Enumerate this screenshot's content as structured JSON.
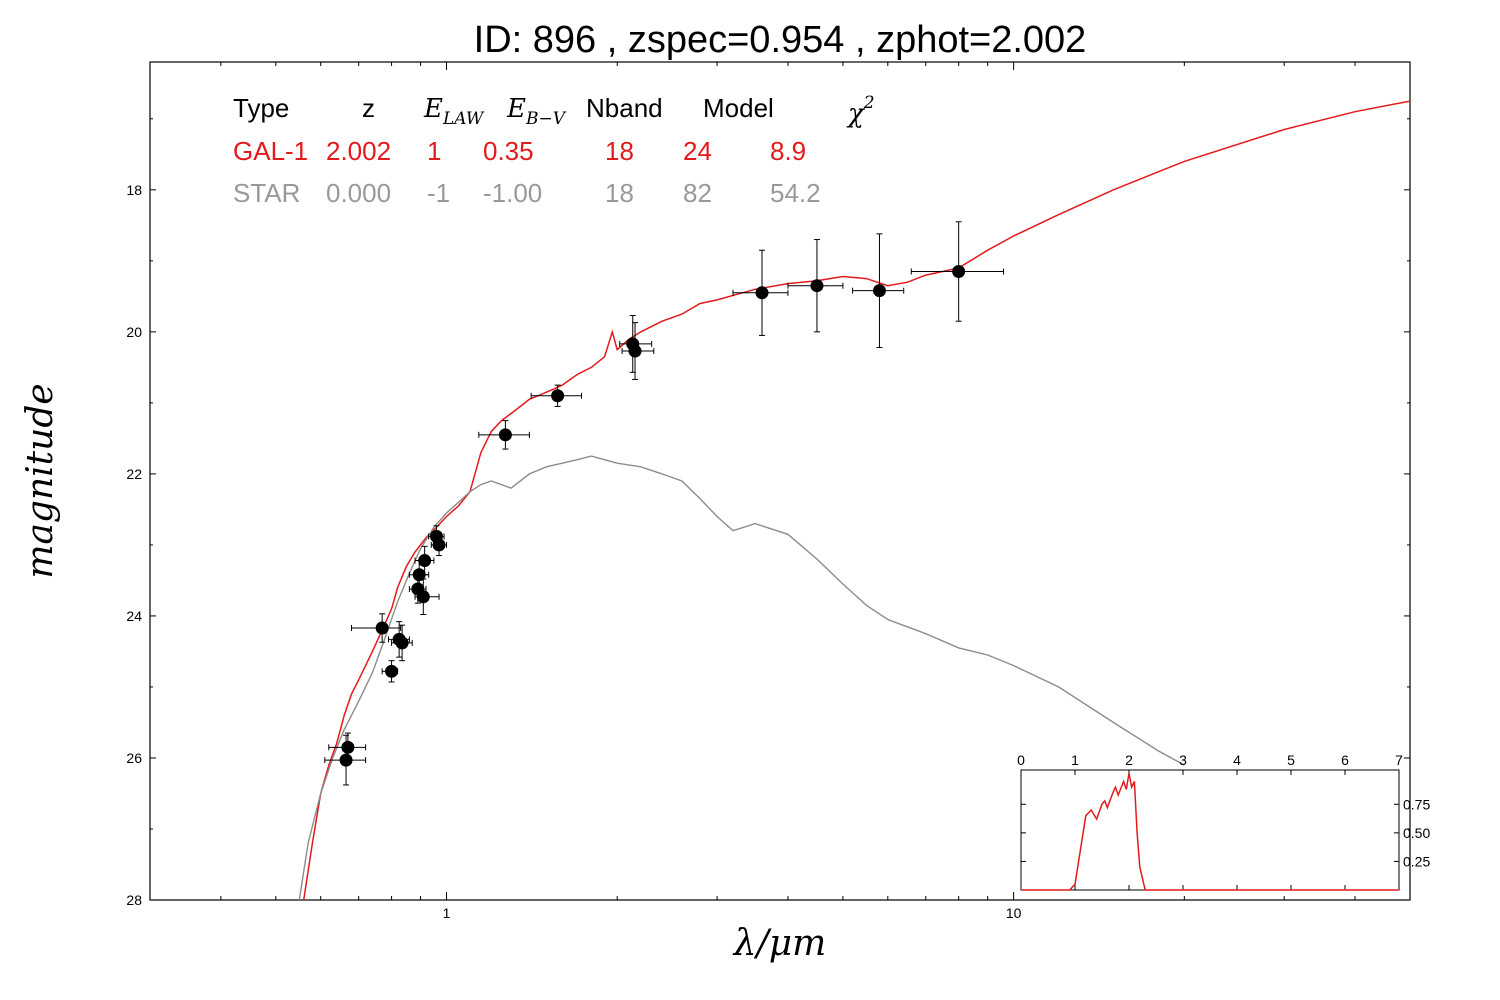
{
  "chart_data": {
    "type": "line",
    "title": "ID:  896   , zspec=0.954 , zphot=2.002",
    "xlabel": "λ/μm",
    "ylabel": "magnitude",
    "xscale": "log",
    "xlim": [
      0.3,
      50
    ],
    "ylim": [
      28,
      16.2
    ],
    "y_inverted": true,
    "xticks": [
      {
        "value": 1,
        "label": "1"
      },
      {
        "value": 10,
        "label": "10"
      }
    ],
    "yticks": [
      18,
      20,
      22,
      24,
      26,
      28
    ],
    "legend_table": {
      "headers": [
        "Type",
        "z",
        "E_LAW",
        "E_B-V",
        "Nband",
        "Model",
        "χ²"
      ],
      "rows": [
        {
          "type": "GAL-1",
          "z": "2.002",
          "elaw": "1",
          "ebv": "0.35",
          "nband": "18",
          "model": "24",
          "chi2": "8.9",
          "color": "#e31a1c"
        },
        {
          "type": "STAR",
          "z": "0.000",
          "elaw": "-1",
          "ebv": "-1.00",
          "nband": "18",
          "model": "82",
          "chi2": "54.2",
          "color": "#999999"
        }
      ]
    },
    "series": [
      {
        "kind": "galaxy-model",
        "color": "#e31a1c",
        "x": [
          0.56,
          0.58,
          0.6,
          0.62,
          0.64,
          0.66,
          0.68,
          0.7,
          0.72,
          0.74,
          0.76,
          0.78,
          0.8,
          0.82,
          0.85,
          0.88,
          0.92,
          0.96,
          1.0,
          1.05,
          1.1,
          1.15,
          1.2,
          1.25,
          1.3,
          1.35,
          1.4,
          1.45,
          1.5,
          1.55,
          1.6,
          1.7,
          1.8,
          1.9,
          1.96,
          2.0,
          2.1,
          2.2,
          2.4,
          2.6,
          2.8,
          3.0,
          3.5,
          4.0,
          4.5,
          5.0,
          5.5,
          6.0,
          6.5,
          7.0,
          7.5,
          8.0,
          9.0,
          10.0,
          12.0,
          15.0,
          20.0,
          30.0,
          40.0,
          50.0
        ],
        "y": [
          28.0,
          27.2,
          26.5,
          26.1,
          25.8,
          25.4,
          25.1,
          24.9,
          24.7,
          24.5,
          24.3,
          24.1,
          23.9,
          23.6,
          23.3,
          23.1,
          22.9,
          22.75,
          22.6,
          22.45,
          22.25,
          21.7,
          21.4,
          21.25,
          21.15,
          21.05,
          20.95,
          20.9,
          20.85,
          20.8,
          20.75,
          20.6,
          20.5,
          20.35,
          20.0,
          20.25,
          20.1,
          20.0,
          19.85,
          19.75,
          19.6,
          19.55,
          19.4,
          19.32,
          19.28,
          19.22,
          19.25,
          19.35,
          19.3,
          19.2,
          19.15,
          19.1,
          18.85,
          18.65,
          18.35,
          18.0,
          17.6,
          17.15,
          16.9,
          16.75
        ]
      },
      {
        "kind": "star-model",
        "color": "#8c8c8c",
        "x": [
          0.55,
          0.57,
          0.6,
          0.63,
          0.66,
          0.7,
          0.74,
          0.78,
          0.82,
          0.86,
          0.9,
          0.95,
          1.0,
          1.05,
          1.1,
          1.15,
          1.2,
          1.3,
          1.4,
          1.5,
          1.6,
          1.7,
          1.8,
          1.9,
          2.0,
          2.2,
          2.4,
          2.6,
          2.8,
          3.0,
          3.2,
          3.5,
          4.0,
          4.5,
          5.0,
          5.5,
          6.0,
          7.0,
          8.0,
          9.0,
          10.0,
          12.0,
          15.0,
          18.0,
          20.0
        ],
        "y": [
          28.0,
          27.2,
          26.5,
          26.0,
          25.6,
          25.2,
          24.8,
          24.3,
          23.8,
          23.4,
          23.05,
          22.75,
          22.55,
          22.4,
          22.25,
          22.15,
          22.1,
          22.2,
          22.0,
          21.9,
          21.85,
          21.8,
          21.75,
          21.8,
          21.85,
          21.9,
          22.0,
          22.1,
          22.35,
          22.6,
          22.8,
          22.7,
          22.85,
          23.2,
          23.55,
          23.85,
          24.05,
          24.25,
          24.45,
          24.55,
          24.7,
          25.0,
          25.5,
          25.9,
          26.1
        ]
      }
    ],
    "observations": [
      {
        "x": 0.67,
        "y": 25.85,
        "xerr": [
          0.62,
          0.72
        ],
        "yerr": 0.2
      },
      {
        "x": 0.665,
        "y": 26.03,
        "xerr": [
          0.61,
          0.72
        ],
        "yerr": 0.35
      },
      {
        "x": 0.77,
        "y": 24.17,
        "xerr": [
          0.68,
          0.83
        ],
        "yerr": 0.2
      },
      {
        "x": 0.8,
        "y": 24.78,
        "xerr": [
          0.77,
          0.82
        ],
        "yerr": 0.15
      },
      {
        "x": 0.825,
        "y": 24.33,
        "xerr": [
          0.79,
          0.86
        ],
        "yerr": 0.25
      },
      {
        "x": 0.835,
        "y": 24.38,
        "xerr": [
          0.8,
          0.87
        ],
        "yerr": 0.25
      },
      {
        "x": 0.89,
        "y": 23.62,
        "xerr": [
          0.86,
          0.92
        ],
        "yerr": 0.2
      },
      {
        "x": 0.895,
        "y": 23.42,
        "xerr": [
          0.86,
          0.93
        ],
        "yerr": 0.2
      },
      {
        "x": 0.91,
        "y": 23.73,
        "xerr": [
          0.88,
          0.97
        ],
        "yerr": 0.25
      },
      {
        "x": 0.915,
        "y": 23.22,
        "xerr": [
          0.88,
          0.95
        ],
        "yerr": 0.2
      },
      {
        "x": 0.96,
        "y": 22.88,
        "xerr": [
          0.93,
          0.99
        ],
        "yerr": 0.15
      },
      {
        "x": 0.97,
        "y": 23.0,
        "xerr": [
          0.94,
          1.0
        ],
        "yerr": 0.15
      },
      {
        "x": 1.27,
        "y": 21.45,
        "xerr": [
          1.14,
          1.4
        ],
        "yerr": 0.2
      },
      {
        "x": 1.57,
        "y": 20.9,
        "xerr": [
          1.41,
          1.73
        ],
        "yerr": 0.15
      },
      {
        "x": 2.13,
        "y": 20.17,
        "xerr": [
          2.02,
          2.3
        ],
        "yerr": 0.4
      },
      {
        "x": 2.15,
        "y": 20.27,
        "xerr": [
          2.04,
          2.32
        ],
        "yerr": 0.4
      },
      {
        "x": 3.6,
        "y": 19.45,
        "xerr": [
          3.2,
          4.0
        ],
        "yerr": 0.6
      },
      {
        "x": 4.5,
        "y": 19.35,
        "xerr": [
          4.0,
          5.0
        ],
        "yerr": 0.65
      },
      {
        "x": 5.8,
        "y": 19.42,
        "xerr": [
          5.2,
          6.4
        ],
        "yerr": 0.8
      },
      {
        "x": 8.0,
        "y": 19.15,
        "xerr": [
          6.6,
          9.6
        ],
        "yerr": 0.7
      }
    ],
    "inset": {
      "type": "line",
      "xlim": [
        0,
        7
      ],
      "ylim": [
        0,
        1.05
      ],
      "xticks": [
        0,
        1,
        2,
        3,
        4,
        5,
        6,
        7
      ],
      "yticks": [
        0.25,
        0.5,
        0.75
      ],
      "ytick_labels": [
        "0.25",
        "0.50",
        "0.75"
      ],
      "color": "#e31a1c",
      "x": [
        0,
        0.9,
        1.0,
        1.1,
        1.2,
        1.3,
        1.4,
        1.5,
        1.55,
        1.6,
        1.7,
        1.75,
        1.8,
        1.9,
        1.95,
        2.0,
        2.05,
        2.1,
        2.15,
        2.2,
        2.3,
        7.0
      ],
      "y": [
        0,
        0,
        0.05,
        0.35,
        0.65,
        0.7,
        0.62,
        0.75,
        0.78,
        0.72,
        0.85,
        0.9,
        0.83,
        0.95,
        0.88,
        1.02,
        0.9,
        0.95,
        0.5,
        0.2,
        0,
        0
      ]
    }
  }
}
